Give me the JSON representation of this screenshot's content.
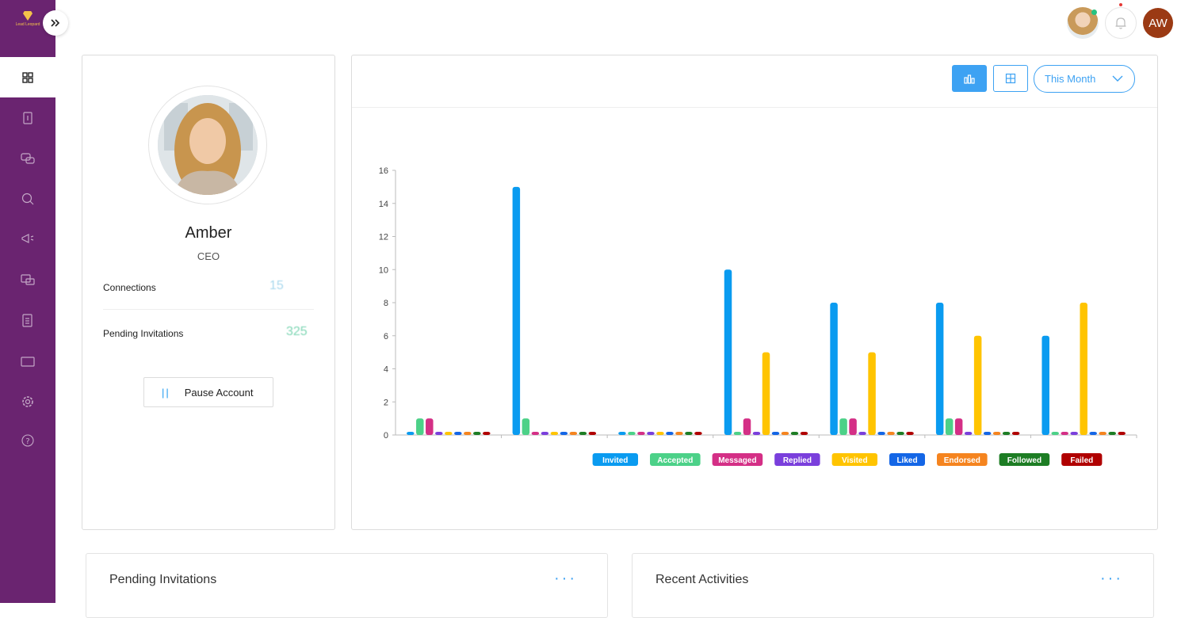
{
  "sidebar": {
    "logo_text": "Lead Leopard",
    "items": [
      "dashboard-icon",
      "report-icon",
      "messages-icon",
      "search-icon",
      "campaign-icon",
      "inbox-icon",
      "list-icon",
      "folder-icon",
      "settings-icon",
      "help-icon"
    ]
  },
  "header": {
    "avatar_initials": "AW"
  },
  "profile": {
    "name": "Amber",
    "role": "CEO",
    "connections_label": "Connections",
    "connections_value": "15",
    "pending_label": "Pending Invitations",
    "pending_value": "325",
    "pause_label": "Pause Account"
  },
  "chart_controls": {
    "period": "This Month"
  },
  "chart_data": {
    "type": "bar",
    "categories": [
      "",
      "",
      "",
      "",
      "",
      "",
      ""
    ],
    "ylim": [
      0,
      16
    ],
    "yticks": [
      0,
      2,
      4,
      6,
      8,
      10,
      12,
      14,
      16
    ],
    "series": [
      {
        "name": "Invited",
        "color": "#0a9bf0",
        "values": [
          0,
          15,
          0,
          10,
          8,
          8,
          6
        ]
      },
      {
        "name": "Accepted",
        "color": "#4cd188",
        "values": [
          1,
          1,
          0,
          0,
          1,
          1,
          0
        ]
      },
      {
        "name": "Messaged",
        "color": "#d42f86",
        "values": [
          1,
          0,
          0,
          1,
          1,
          1,
          0
        ]
      },
      {
        "name": "Replied",
        "color": "#7a3fdc",
        "values": [
          0,
          0,
          0,
          0,
          0,
          0,
          0
        ]
      },
      {
        "name": "Visited",
        "color": "#ffc400",
        "values": [
          0,
          0,
          0,
          5,
          5,
          6,
          8
        ]
      },
      {
        "name": "Liked",
        "color": "#1466e6",
        "values": [
          0,
          0,
          0,
          0,
          0,
          0,
          0
        ]
      },
      {
        "name": "Endorsed",
        "color": "#f5841f",
        "values": [
          0,
          0,
          0,
          0,
          0,
          0,
          0
        ]
      },
      {
        "name": "Followed",
        "color": "#1d7d24",
        "values": [
          0,
          0,
          0,
          0,
          0,
          0,
          0
        ]
      },
      {
        "name": "Failed",
        "color": "#b00000",
        "values": [
          0,
          0,
          0,
          0,
          0,
          0,
          0
        ]
      }
    ],
    "grid": false,
    "legend": "bottom"
  },
  "bottom": {
    "pending_title": "Pending Invitations",
    "recent_title": "Recent Activities"
  }
}
